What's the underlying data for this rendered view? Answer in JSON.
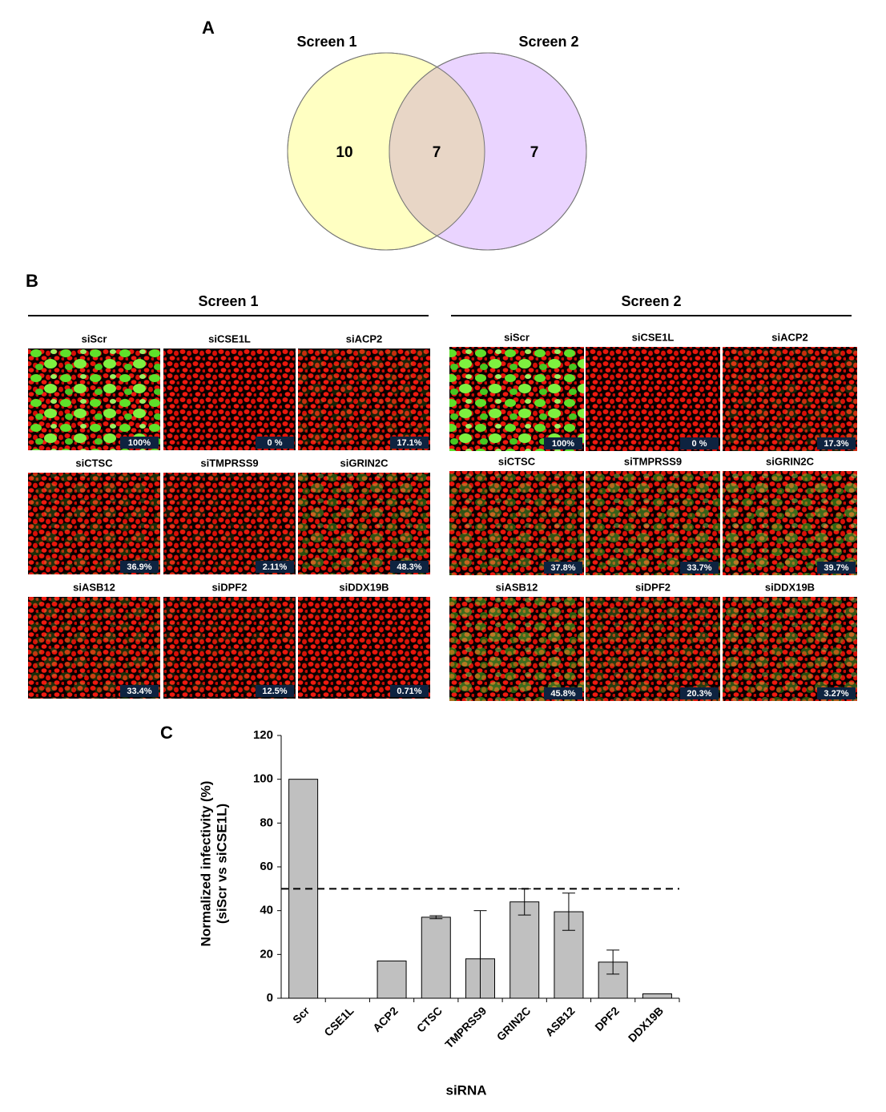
{
  "panel_a": {
    "label": "A",
    "set_names": [
      "Screen 1",
      "Screen 2"
    ],
    "only_first": "10",
    "overlap": "7",
    "only_second": "7"
  },
  "panel_b": {
    "label": "B",
    "screens": [
      {
        "title": "Screen 1",
        "tiles": [
          {
            "name": "siScr",
            "value": "100%"
          },
          {
            "name": "siCSE1L",
            "value": "0 %"
          },
          {
            "name": "siACP2",
            "value": "17.1%"
          },
          {
            "name": "siCTSC",
            "value": "36.9%"
          },
          {
            "name": "siTMPRSS9",
            "value": "2.11%"
          },
          {
            "name": "siGRIN2C",
            "value": "48.3%"
          },
          {
            "name": "siASB12",
            "value": "33.4%"
          },
          {
            "name": "siDPF2",
            "value": "12.5%"
          },
          {
            "name": "siDDX19B",
            "value": "0.71%"
          }
        ]
      },
      {
        "title": "Screen 2",
        "tiles": [
          {
            "name": "siScr",
            "value": "100%"
          },
          {
            "name": "siCSE1L",
            "value": "0 %"
          },
          {
            "name": "siACP2",
            "value": "17.3%"
          },
          {
            "name": "siCTSC",
            "value": "37.8%"
          },
          {
            "name": "siTMPRSS9",
            "value": "33.7%"
          },
          {
            "name": "siGRIN2C",
            "value": "39.7%"
          },
          {
            "name": "siASB12",
            "value": "45.8%"
          },
          {
            "name": "siDPF2",
            "value": "20.3%"
          },
          {
            "name": "siDDX19B",
            "value": "3.27%"
          }
        ]
      }
    ]
  },
  "chart_data": {
    "type": "bar",
    "panel_label": "C",
    "y_label": [
      "Normalized infectivity (%)",
      "(siScr vs siCSE1L)"
    ],
    "x_label": "siRNA",
    "categories": [
      "Scr",
      "CSE1L",
      "ACP2",
      "CTSC",
      "TMPRSS9",
      "GRIN2C",
      "ASB12",
      "DPF2",
      "DDX19B"
    ],
    "values": [
      100,
      0,
      17,
      37,
      18,
      44,
      39.5,
      16.5,
      2
    ],
    "errors": [
      null,
      null,
      null,
      0.7,
      22,
      6,
      8.5,
      5.5,
      null
    ],
    "color": "#c0c0c0",
    "threshold": 50,
    "ylim": [
      0,
      120
    ],
    "yticks": [
      0,
      20,
      40,
      60,
      80,
      100,
      120
    ]
  }
}
